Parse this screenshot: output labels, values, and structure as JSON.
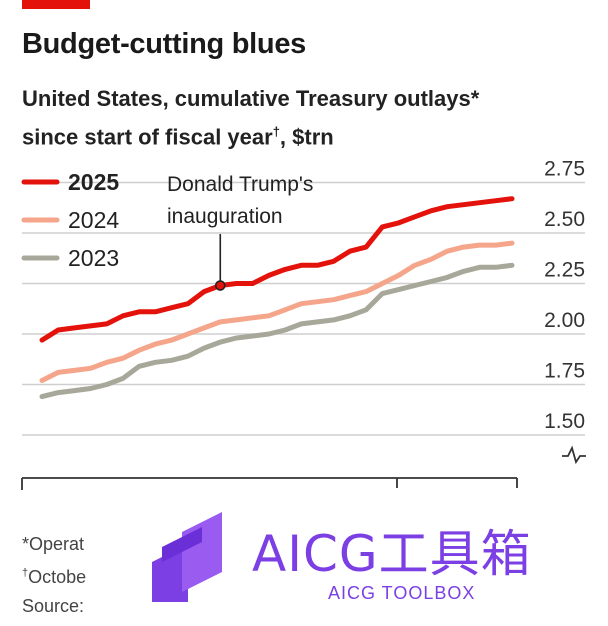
{
  "header": {
    "title": "Budget-cutting blues",
    "subtitle_line1": "United States, cumulative Treasury outlays*",
    "subtitle_line2_pre": "since start of fiscal year",
    "subtitle_dagger": "†",
    "subtitle_line2_post": ", $trn"
  },
  "chart_data": {
    "type": "line",
    "title": "Budget-cutting blues",
    "ylabel": "$trn",
    "ylim": [
      1.5,
      2.75
    ],
    "yticks": [
      1.5,
      1.75,
      2.0,
      2.25,
      2.5,
      2.75
    ],
    "ytick_labels": [
      "1.50",
      "1.75",
      "2.00",
      "2.25",
      "2.50",
      "2.75"
    ],
    "y_axis_side": "right",
    "grid": true,
    "legend_position": "top-left",
    "axis_break": true,
    "annotation": {
      "line1": "Donald Trump's",
      "line2": "inauguration",
      "series": "2025",
      "point_index": 11
    },
    "series": [
      {
        "name": "2025",
        "color": "#e3120b",
        "bold": true,
        "values": [
          1.97,
          2.02,
          2.03,
          2.04,
          2.05,
          2.09,
          2.11,
          2.11,
          2.13,
          2.15,
          2.21,
          2.24,
          2.25,
          2.25,
          2.29,
          2.32,
          2.34,
          2.34,
          2.36,
          2.41,
          2.43,
          2.53,
          2.55,
          2.58,
          2.61,
          2.63,
          2.64,
          2.65,
          2.66,
          2.67
        ]
      },
      {
        "name": "2024",
        "color": "#f4a58a",
        "bold": false,
        "values": [
          1.77,
          1.81,
          1.82,
          1.83,
          1.86,
          1.88,
          1.92,
          1.95,
          1.97,
          2.0,
          2.03,
          2.06,
          2.07,
          2.08,
          2.09,
          2.12,
          2.15,
          2.16,
          2.17,
          2.19,
          2.21,
          2.25,
          2.29,
          2.34,
          2.37,
          2.41,
          2.43,
          2.44,
          2.44,
          2.45
        ]
      },
      {
        "name": "2023",
        "color": "#a8a89a",
        "bold": false,
        "values": [
          1.69,
          1.71,
          1.72,
          1.73,
          1.75,
          1.78,
          1.84,
          1.86,
          1.87,
          1.89,
          1.93,
          1.96,
          1.98,
          1.99,
          2.0,
          2.02,
          2.05,
          2.06,
          2.07,
          2.09,
          2.12,
          2.2,
          2.22,
          2.24,
          2.26,
          2.28,
          2.31,
          2.33,
          2.33,
          2.34
        ]
      }
    ]
  },
  "footnotes": {
    "line1": "*Operat",
    "line2_dagger": "†",
    "line2": "Octobe",
    "line3": "Source:"
  },
  "watermark": {
    "text": "AICG工具箱",
    "subtext": "AICG TOOLBOX",
    "color": "#7b3fe4"
  }
}
